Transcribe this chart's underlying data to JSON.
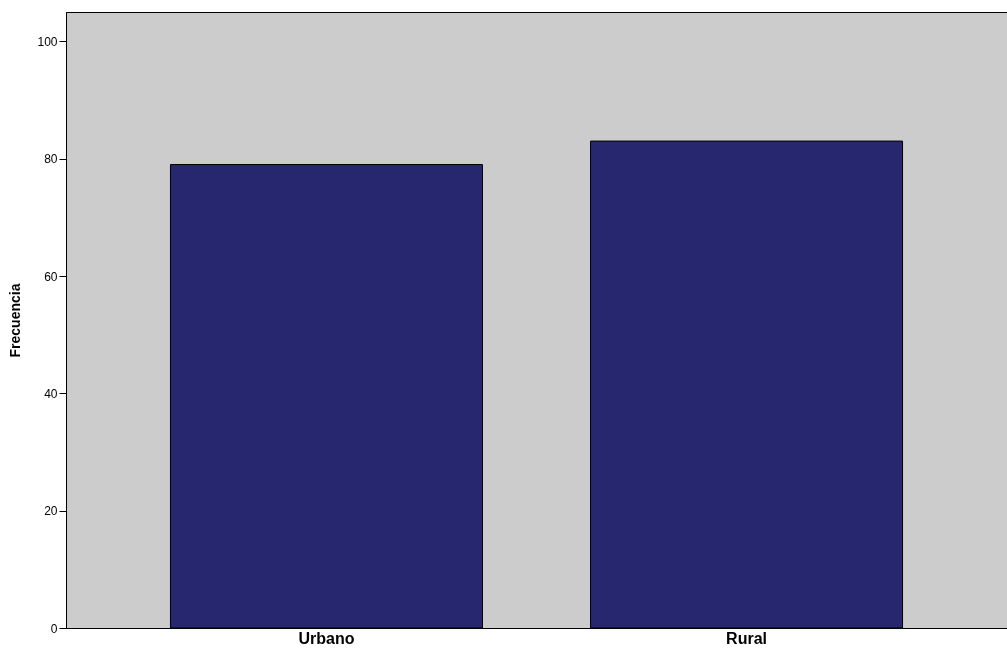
{
  "chart_data": {
    "type": "bar",
    "ylabel": "Frecuencia",
    "categories": [
      "Urbano",
      "Rural"
    ],
    "values": [
      79,
      83
    ],
    "color": "#26276f",
    "ylim": [
      0,
      105
    ],
    "yticks": [
      0,
      20,
      40,
      60,
      80,
      100
    ],
    "grid": false
  }
}
